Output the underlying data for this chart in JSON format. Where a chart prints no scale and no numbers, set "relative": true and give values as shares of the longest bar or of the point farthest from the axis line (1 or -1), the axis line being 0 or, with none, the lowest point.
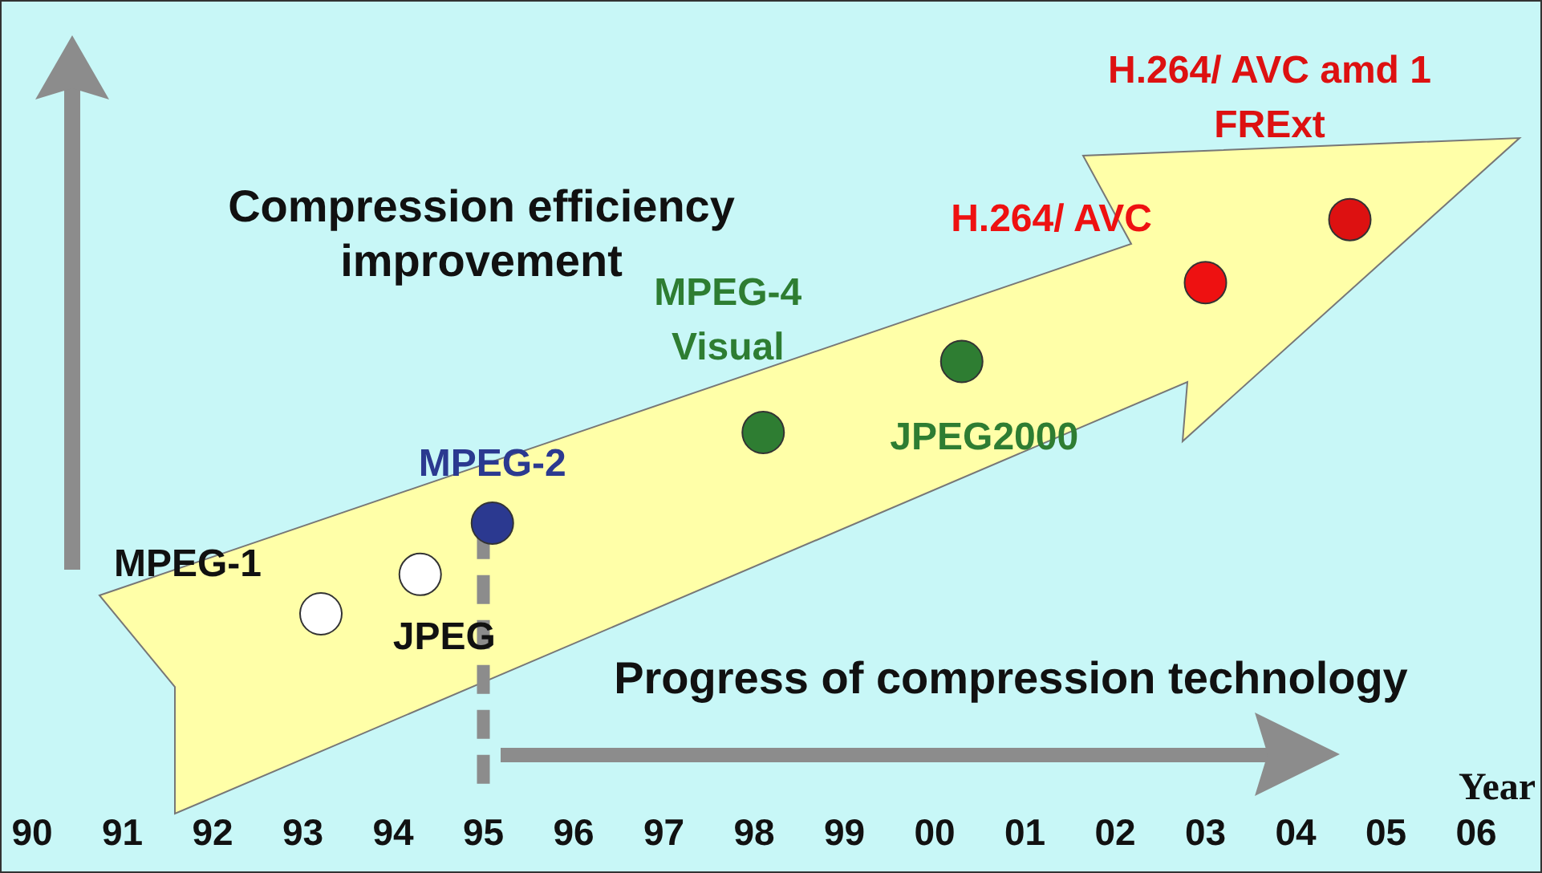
{
  "chart_data": {
    "type": "scatter",
    "relative": true,
    "xlabel": "Year",
    "marker": "circle",
    "tick_labels": "x",
    "x": [
      1993.2,
      1994.3,
      1995.1,
      1998.1,
      2000.3,
      2003.0,
      2004.6
    ],
    "values": [
      0,
      0.1,
      0.23,
      0.46,
      0.64,
      0.84,
      1
    ],
    "colors": [
      "#ffffff",
      "#ffffff",
      "#2b3990",
      "#2e7d32",
      "#2e7d32",
      "#ee1111",
      "#dd1111"
    ],
    "xlim": [
      1990,
      2006
    ],
    "ref_lines": [
      {
        "axis": "x",
        "value": 1995,
        "color": "#8c8c8c",
        "line_style": "dashed"
      }
    ],
    "xticks": [
      {
        "value": 1990,
        "label": "90"
      },
      {
        "value": 1991,
        "label": "91"
      },
      {
        "value": 1992,
        "label": "92"
      },
      {
        "value": 1993,
        "label": "93"
      },
      {
        "value": 1994,
        "label": "94"
      },
      {
        "value": 1995,
        "label": "95"
      },
      {
        "value": 1996,
        "label": "96"
      },
      {
        "value": 1997,
        "label": "97"
      },
      {
        "value": 1998,
        "label": "98"
      },
      {
        "value": 1999,
        "label": "99"
      },
      {
        "value": 2000,
        "label": "00"
      },
      {
        "value": 2001,
        "label": "01"
      },
      {
        "value": 2002,
        "label": "02"
      },
      {
        "value": 2003,
        "label": "03"
      },
      {
        "value": 2004,
        "label": "04"
      },
      {
        "value": 2005,
        "label": "05"
      },
      {
        "value": 2006,
        "label": "06"
      }
    ],
    "annotations": [
      {
        "text": "MPEG-1",
        "x": 1993.2,
        "y": 0
      },
      {
        "text": "JPEG",
        "x": 1994.3,
        "y": 0.1
      },
      {
        "text": "MPEG-2",
        "x": 1995.1,
        "y": 0.23
      },
      {
        "text": "MPEG-4\nVisual",
        "x": 1998.1,
        "y": 0.46
      },
      {
        "text": "JPEG2000",
        "x": 2000.3,
        "y": 0.64
      },
      {
        "text": "H.264/ AVC",
        "x": 2003.0,
        "y": 0.84
      },
      {
        "text": "H.264/ AVC amd 1\nFRExt",
        "x": 2004.6,
        "y": 1
      },
      "Compression efficiency\nimprovement",
      "Progress of compression technology"
    ]
  }
}
